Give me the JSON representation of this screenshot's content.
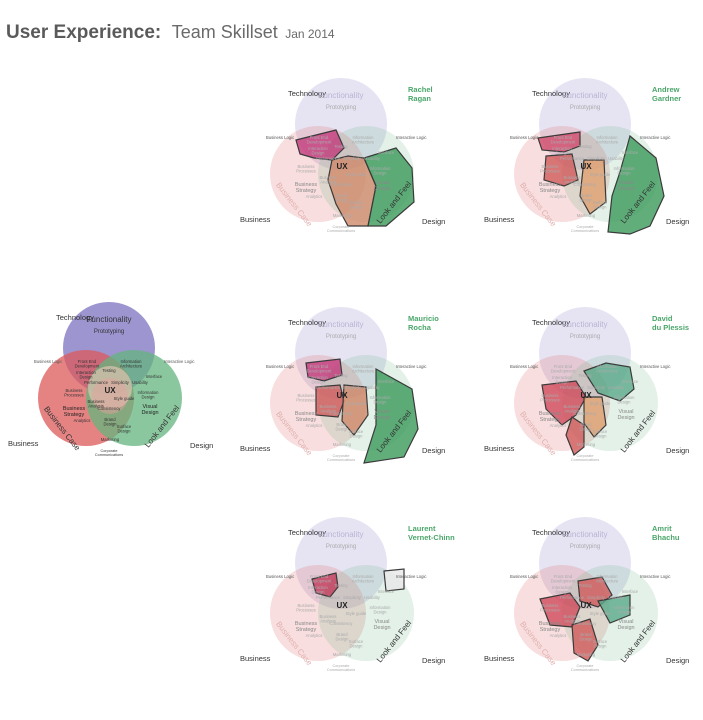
{
  "header": {
    "title": "User Experience:",
    "subtitle": "Team Skillset",
    "date": "Jan 2014"
  },
  "venn": {
    "technology": "Technology",
    "business": "Business",
    "design": "Design",
    "functionality": "Functionality",
    "business_case": "Business Case",
    "look_and_feel": "Look and Feel",
    "business_logic": "Business Logic",
    "interactive_logic": "Interactive Logic",
    "prototyping": "Prototyping",
    "front_end": "Front End Development",
    "info_arch": "Information Architecture",
    "interaction_design": "Interaction Design",
    "testing": "Testing",
    "interface": "Interface",
    "performance": "Performance",
    "simplicity": "Simplicity",
    "usability": "Usability",
    "business_processes": "Business Processes",
    "ux": "UX",
    "info_design": "Information Design",
    "style_guide": "Style guide",
    "business_analysis": "Business Analysis",
    "consistency": "Consistency",
    "business_strategy": "Business Strategy",
    "visual_design": "Visual Design",
    "analytics": "Analytics",
    "brand_design": "Brand Design",
    "surface_design": "Surface Design",
    "marketing": "Marketing",
    "corporate_comms": "Corporate Communications"
  },
  "colors": {
    "functionality": "#8c82c8",
    "business": "#dc5a5a",
    "design": "#64b47d",
    "highlight_outline": "#3a3a3a",
    "name_green": "#4aa66a"
  },
  "people": [
    {
      "first": "Rachel",
      "last": "Ragan"
    },
    {
      "first": "Andrew",
      "last": "Gardner"
    },
    {
      "first": "Mauricio",
      "last": "Rocha"
    },
    {
      "first": "David",
      "last": "du Plessis"
    },
    {
      "first": "Laurent",
      "last": "Vernet-Chinn"
    },
    {
      "first": "Amrit",
      "last": "Bhachu"
    }
  ]
}
